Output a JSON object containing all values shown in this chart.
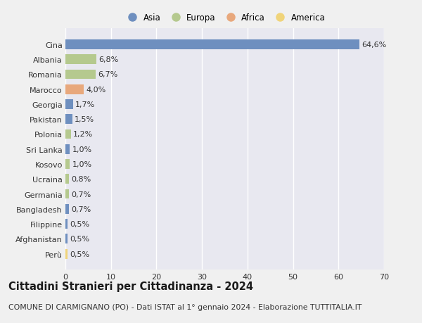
{
  "countries": [
    "Cina",
    "Albania",
    "Romania",
    "Marocco",
    "Georgia",
    "Pakistan",
    "Polonia",
    "Sri Lanka",
    "Kosovo",
    "Ucraina",
    "Germania",
    "Bangladesh",
    "Filippine",
    "Afghanistan",
    "Perù"
  ],
  "values": [
    64.6,
    6.8,
    6.7,
    4.0,
    1.7,
    1.5,
    1.2,
    1.0,
    1.0,
    0.8,
    0.7,
    0.7,
    0.5,
    0.5,
    0.5
  ],
  "labels": [
    "64,6%",
    "6,8%",
    "6,7%",
    "4,0%",
    "1,7%",
    "1,5%",
    "1,2%",
    "1,0%",
    "1,0%",
    "0,8%",
    "0,7%",
    "0,7%",
    "0,5%",
    "0,5%",
    "0,5%"
  ],
  "bar_colors": [
    "#6e8fbf",
    "#b5c98e",
    "#b5c98e",
    "#e8a87c",
    "#6e8fbf",
    "#6e8fbf",
    "#b5c98e",
    "#6e8fbf",
    "#b5c98e",
    "#b5c98e",
    "#b5c98e",
    "#6e8fbf",
    "#6e8fbf",
    "#6e8fbf",
    "#f0d47a"
  ],
  "xlim": [
    0,
    70
  ],
  "xticks": [
    0,
    10,
    20,
    30,
    40,
    50,
    60,
    70
  ],
  "title": "Cittadini Stranieri per Cittadinanza - 2024",
  "subtitle": "COMUNE DI CARMIGNANO (PO) - Dati ISTAT al 1° gennaio 2024 - Elaborazione TUTTITALIA.IT",
  "legend_labels": [
    "Asia",
    "Europa",
    "Africa",
    "America"
  ],
  "legend_colors": [
    "#6e8fbf",
    "#b5c98e",
    "#e8a87c",
    "#f0d47a"
  ],
  "bg_color": "#f0f0f0",
  "plot_bg_color": "#e8e8f0",
  "grid_color": "#ffffff",
  "label_fontsize": 8.0,
  "tick_fontsize": 8.0,
  "title_fontsize": 10.5,
  "subtitle_fontsize": 7.8
}
